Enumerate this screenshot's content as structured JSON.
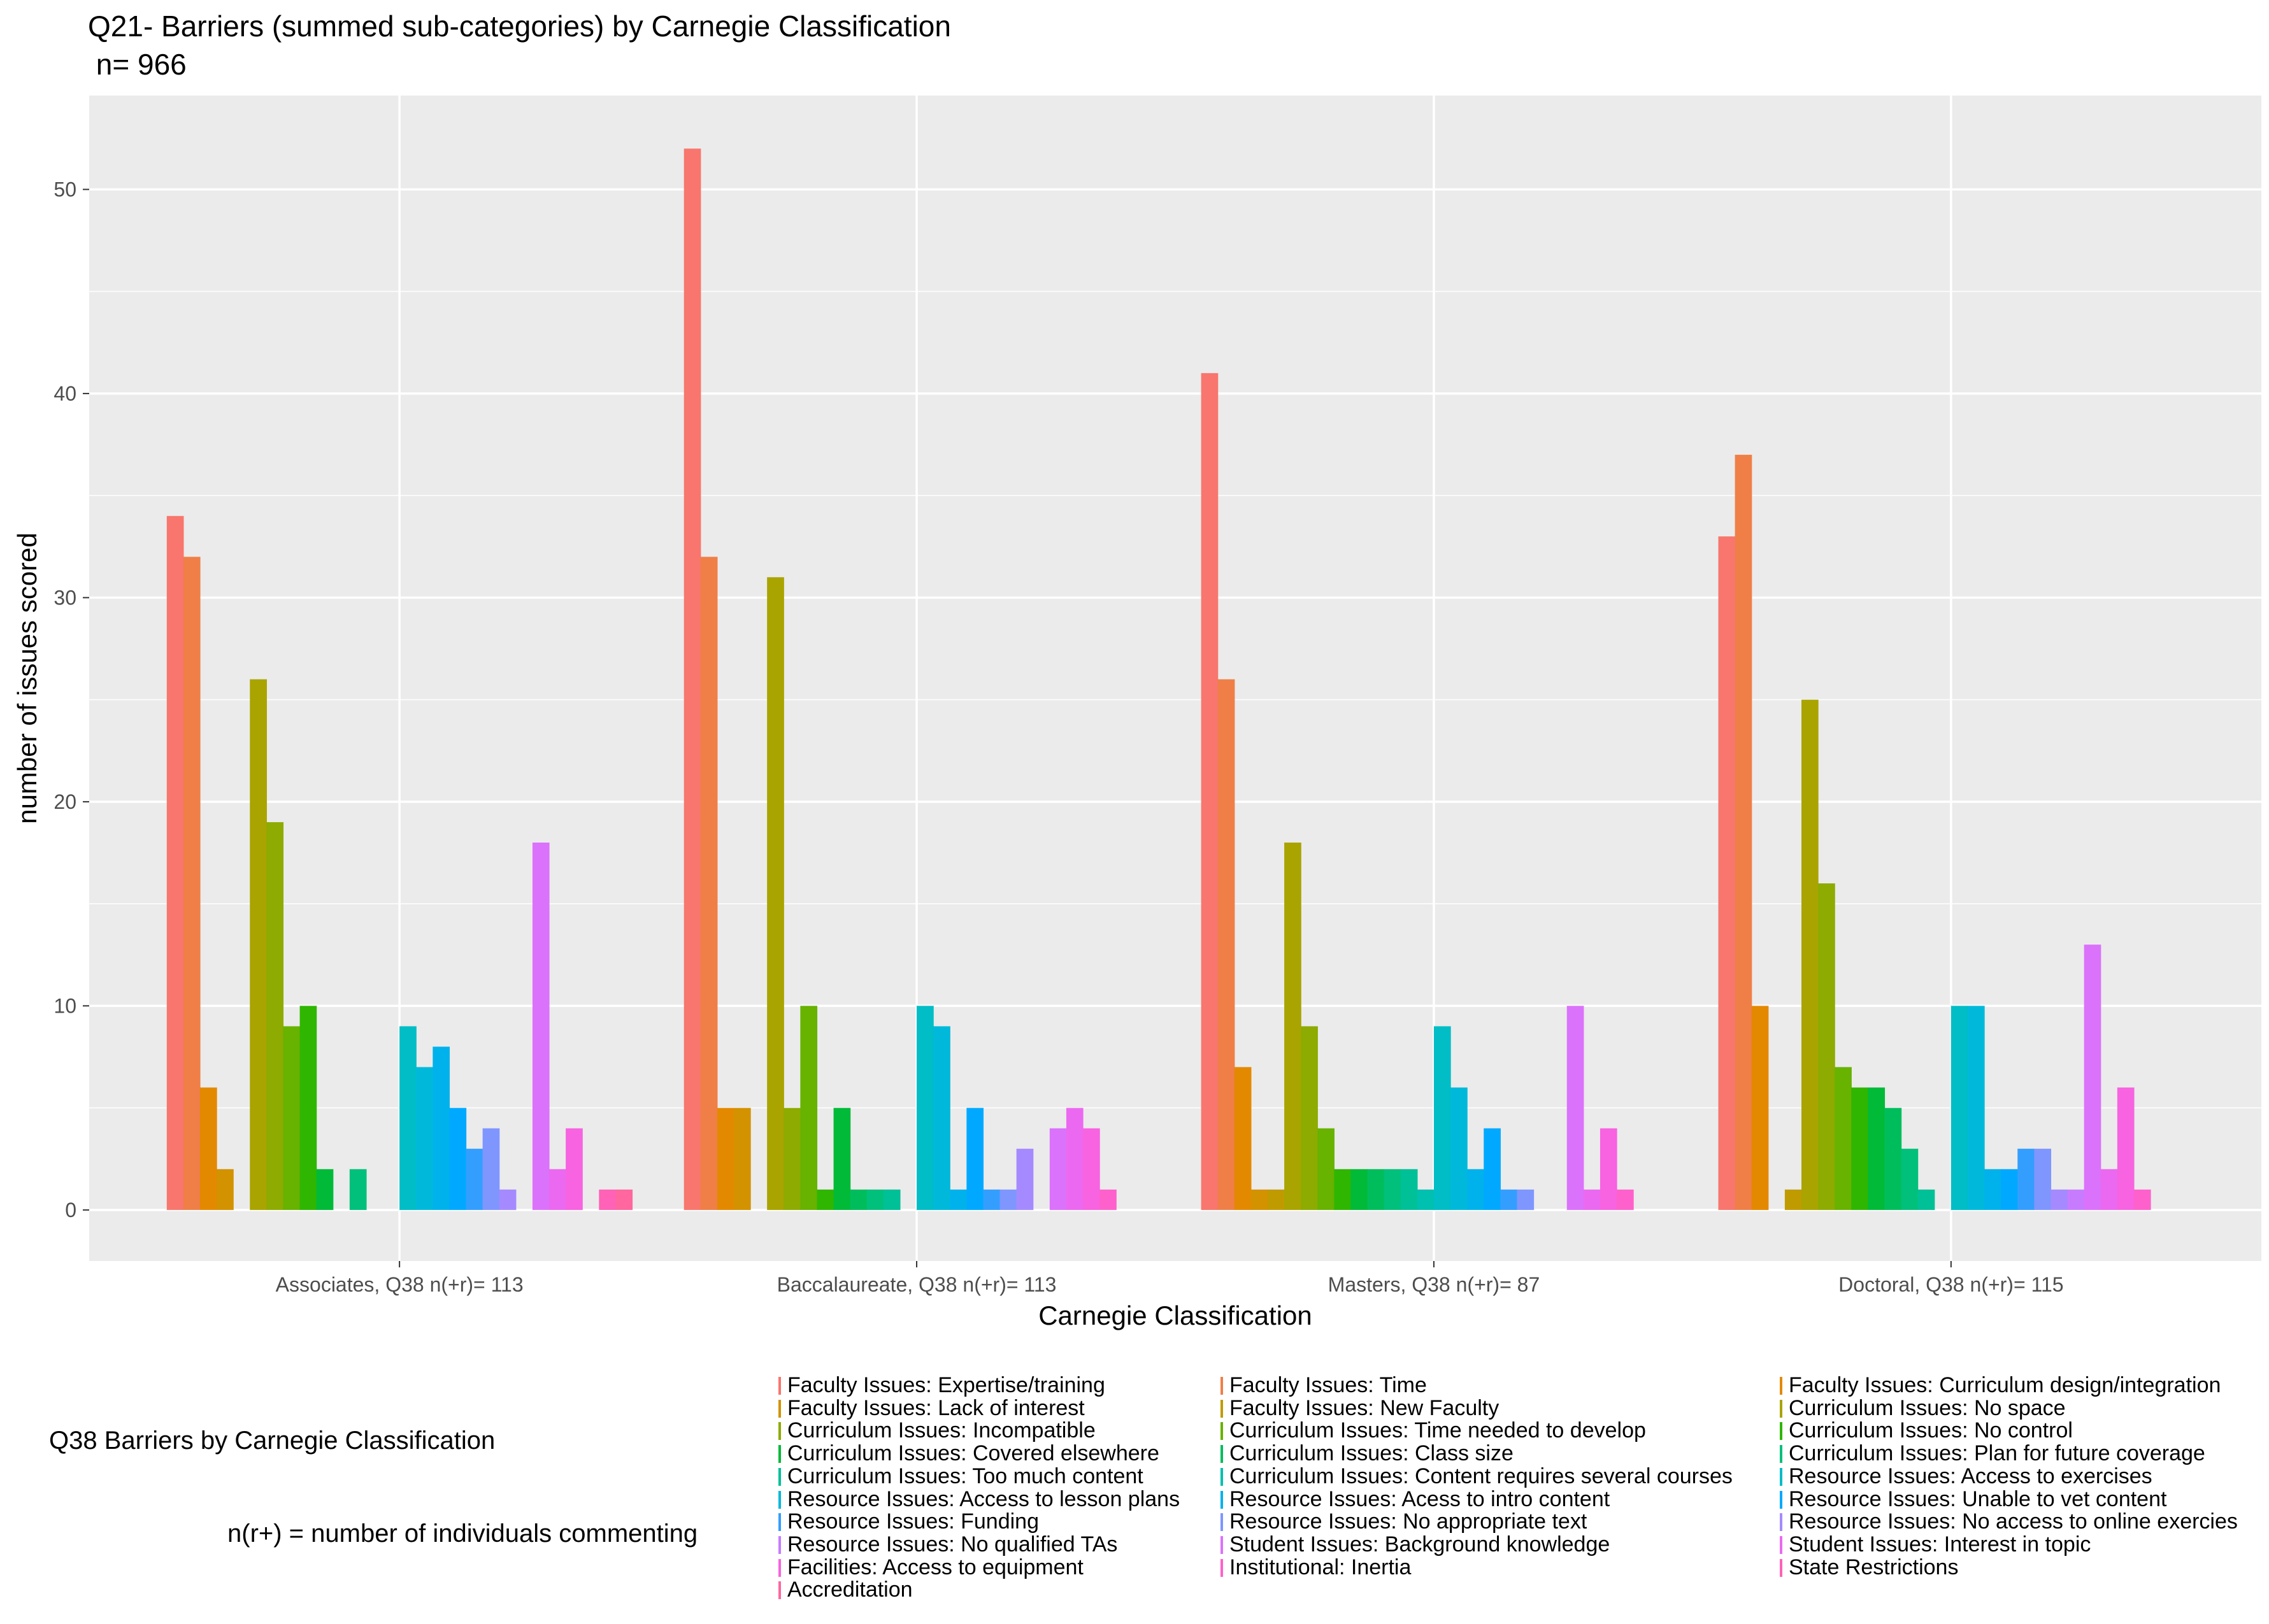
{
  "title": "Q21- Barriers (summed sub-categories) by Carnegie Classification",
  "subtitle": " n= 966",
  "legend_side": {
    "heading": "Q38 Barriers by Carnegie Classification",
    "note": "n(r+) = number of individuals commenting"
  },
  "chart_data": {
    "type": "bar",
    "title": "Q21- Barriers (summed sub-categories) by Carnegie Classification\n n= 966",
    "xlabel": "Carnegie Classification",
    "ylabel": "number of issues scored",
    "ylim": [
      -2.5,
      54.6
    ],
    "yticks": [
      0,
      10,
      20,
      30,
      40,
      50
    ],
    "grid": true,
    "legend_position": "bottom",
    "categories": [
      "Associates, Q38 n(+r)= 113",
      "Baccalaureate, Q38 n(+r)= 113",
      "Masters, Q38 n(+r)= 87",
      "Doctoral, Q38 n(+r)= 115"
    ],
    "series": [
      {
        "name": "Faculty Issues: Expertise/training",
        "color": "#F8766D",
        "values": [
          34,
          52,
          41,
          33
        ]
      },
      {
        "name": "Faculty Issues: Time",
        "color": "#EF7F47",
        "values": [
          32,
          32,
          26,
          37
        ]
      },
      {
        "name": "Faculty Issues: Curriculum design/integration",
        "color": "#E38900",
        "values": [
          6,
          5,
          7,
          10
        ]
      },
      {
        "name": "Faculty Issues: Lack of interest",
        "color": "#D39200",
        "values": [
          2,
          5,
          1,
          0
        ]
      },
      {
        "name": "Faculty Issues: New Faculty",
        "color": "#C09B00",
        "values": [
          0,
          0,
          1,
          1
        ]
      },
      {
        "name": "Curriculum Issues: No space",
        "color": "#A9A400",
        "values": [
          26,
          31,
          18,
          25
        ]
      },
      {
        "name": "Curriculum Issues: Incompatible",
        "color": "#8DAB00",
        "values": [
          19,
          5,
          9,
          16
        ]
      },
      {
        "name": "Curriculum Issues: Time needed to develop",
        "color": "#68B200",
        "values": [
          9,
          10,
          4,
          7
        ]
      },
      {
        "name": "Curriculum Issues: No control",
        "color": "#2FB600",
        "values": [
          10,
          1,
          2,
          6
        ]
      },
      {
        "name": "Curriculum Issues: Covered elsewhere",
        "color": "#00BA38",
        "values": [
          2,
          5,
          2,
          6
        ]
      },
      {
        "name": "Curriculum Issues: Class size",
        "color": "#00BD5C",
        "values": [
          0,
          1,
          2,
          5
        ]
      },
      {
        "name": "Curriculum Issues: Plan for future coverage",
        "color": "#00C07B",
        "values": [
          2,
          1,
          2,
          3
        ]
      },
      {
        "name": "Curriculum Issues: Too much content",
        "color": "#00C097",
        "values": [
          0,
          1,
          2,
          1
        ]
      },
      {
        "name": "Curriculum Issues: Content requires several courses",
        "color": "#00C0B0",
        "values": [
          0,
          0,
          1,
          0
        ]
      },
      {
        "name": "Resource Issues: Access to exercises",
        "color": "#00BDC6",
        "values": [
          9,
          10,
          9,
          10
        ]
      },
      {
        "name": "Resource Issues: Access to lesson plans",
        "color": "#00B9DA",
        "values": [
          7,
          9,
          6,
          10
        ]
      },
      {
        "name": "Resource Issues: Acess to intro content",
        "color": "#00B2EB",
        "values": [
          8,
          1,
          2,
          2
        ]
      },
      {
        "name": "Resource Issues: Unable to vet content",
        "color": "#00A9FF",
        "values": [
          5,
          5,
          4,
          2
        ]
      },
      {
        "name": "Resource Issues: Funding",
        "color": "#349EFF",
        "values": [
          3,
          1,
          1,
          3
        ]
      },
      {
        "name": "Resource Issues: No appropriate text",
        "color": "#7F96FF",
        "values": [
          4,
          1,
          1,
          3
        ]
      },
      {
        "name": "Resource Issues: No access to online exercies",
        "color": "#A58AFF",
        "values": [
          1,
          3,
          0,
          1
        ]
      },
      {
        "name": "Resource Issues: No qualified TAs",
        "color": "#C77CFF",
        "values": [
          0,
          0,
          0,
          1
        ]
      },
      {
        "name": "Student Issues: Background knowledge",
        "color": "#DB72FB",
        "values": [
          18,
          4,
          10,
          13
        ]
      },
      {
        "name": "Student Issues: Interest in topic",
        "color": "#EB69F0",
        "values": [
          2,
          5,
          1,
          2
        ]
      },
      {
        "name": "Facilities: Access to equipment",
        "color": "#F763E0",
        "values": [
          4,
          4,
          4,
          6
        ]
      },
      {
        "name": "Institutional: Inertia",
        "color": "#FF61CC",
        "values": [
          0,
          1,
          1,
          1
        ]
      },
      {
        "name": "State Restrictions",
        "color": "#FF62B6",
        "values": [
          1,
          0,
          0,
          0
        ]
      },
      {
        "name": "Accreditation",
        "color": "#FF679E",
        "values": [
          1,
          0,
          0,
          0
        ]
      }
    ]
  }
}
